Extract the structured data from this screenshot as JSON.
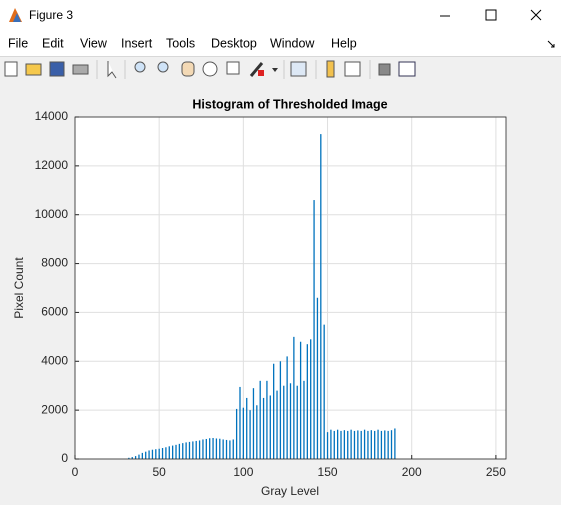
{
  "window": {
    "title": "Figure 3"
  },
  "menu": [
    "File",
    "Edit",
    "View",
    "Insert",
    "Tools",
    "Desktop",
    "Window",
    "Help"
  ],
  "chart_data": {
    "type": "bar",
    "title": "Histogram of Thresholded Image",
    "xlabel": "Gray Level",
    "ylabel": "Pixel Count",
    "x": [
      32,
      34,
      36,
      38,
      40,
      42,
      44,
      46,
      48,
      50,
      52,
      54,
      56,
      58,
      60,
      62,
      64,
      66,
      68,
      70,
      72,
      74,
      76,
      78,
      80,
      82,
      84,
      86,
      88,
      90,
      92,
      94,
      96,
      98,
      100,
      102,
      104,
      106,
      108,
      110,
      112,
      114,
      116,
      118,
      120,
      122,
      124,
      126,
      128,
      130,
      132,
      134,
      136,
      138,
      140,
      142,
      144,
      146,
      148,
      150,
      152,
      154,
      156,
      158,
      160,
      162,
      164,
      166,
      168,
      170,
      172,
      174,
      176,
      178,
      180,
      182,
      184,
      186,
      188,
      190
    ],
    "values": [
      50,
      80,
      120,
      180,
      250,
      300,
      350,
      380,
      400,
      420,
      450,
      480,
      520,
      550,
      580,
      620,
      650,
      680,
      700,
      720,
      740,
      760,
      800,
      820,
      850,
      860,
      840,
      830,
      800,
      780,
      760,
      800,
      2050,
      2950,
      2100,
      2500,
      2000,
      2900,
      2200,
      3200,
      2500,
      3200,
      2600,
      3900,
      2800,
      4000,
      3000,
      4200,
      3100,
      5000,
      3000,
      4800,
      3200,
      4700,
      4900,
      10600,
      6600,
      13300,
      5500,
      1100,
      1200,
      1150,
      1200,
      1150,
      1180,
      1150,
      1200,
      1150,
      1170,
      1150,
      1200,
      1150,
      1180,
      1150,
      1200,
      1150,
      1170,
      1150,
      1180,
      1250
    ],
    "color": "#0072bd",
    "xlim": [
      0,
      256
    ],
    "ylim": [
      0,
      14000
    ],
    "xticks": [
      0,
      50,
      100,
      150,
      200,
      250
    ],
    "yticks": [
      0,
      2000,
      4000,
      6000,
      8000,
      10000,
      12000,
      14000
    ],
    "grid": true
  }
}
